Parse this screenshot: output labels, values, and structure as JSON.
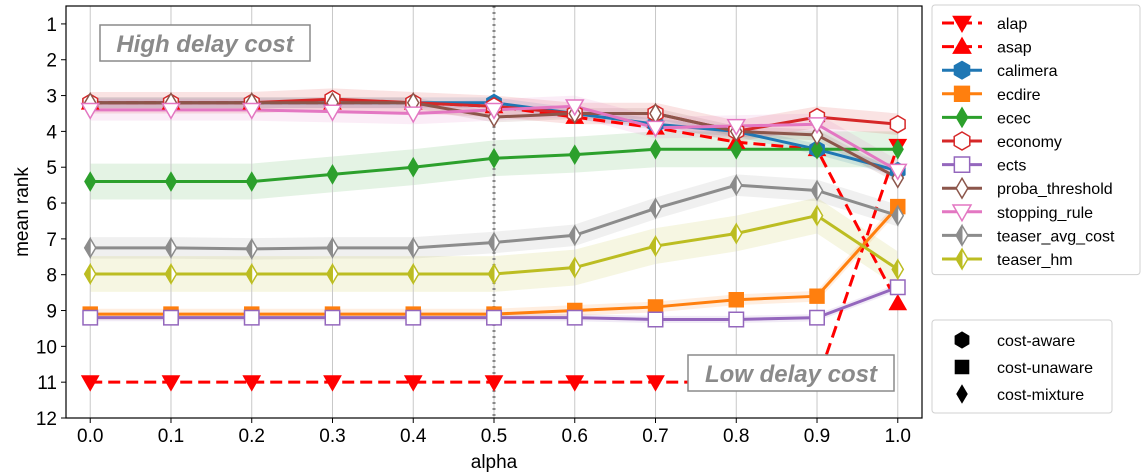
{
  "chart_data": {
    "type": "line",
    "xlabel": "alpha",
    "ylabel": "mean rank",
    "xlim": [
      -0.03,
      1.03
    ],
    "ylim": [
      12,
      0.5
    ],
    "y_inverted": true,
    "xticks": [
      "0.0",
      "0.1",
      "0.2",
      "0.3",
      "0.4",
      "0.5",
      "0.6",
      "0.7",
      "0.8",
      "0.9",
      "1.0"
    ],
    "xtick_values": [
      0.0,
      0.1,
      0.2,
      0.3,
      0.4,
      0.5,
      0.6,
      0.7,
      0.8,
      0.9,
      1.0
    ],
    "yticks": [
      "1",
      "2",
      "3",
      "4",
      "5",
      "6",
      "7",
      "8",
      "9",
      "10",
      "11",
      "12"
    ],
    "ytick_values": [
      1,
      2,
      3,
      4,
      5,
      6,
      7,
      8,
      9,
      10,
      11,
      12
    ],
    "grid": "vertical",
    "reference_line": {
      "x": 0.5,
      "style": "dotted",
      "color": "#888888"
    },
    "legend_position": "right",
    "x": [
      0.0,
      0.1,
      0.2,
      0.3,
      0.4,
      0.5,
      0.6,
      0.7,
      0.8,
      0.9,
      1.0
    ],
    "series": [
      {
        "name": "alap",
        "color": "#ff0000",
        "marker": "triangle-down",
        "dashed": true,
        "filled": true,
        "values": [
          11,
          11,
          11,
          11,
          11,
          11,
          11,
          11,
          11,
          11,
          4.4
        ],
        "band": 0.0
      },
      {
        "name": "asap",
        "color": "#ff0000",
        "marker": "triangle-up",
        "dashed": true,
        "filled": true,
        "values": [
          3.2,
          3.2,
          3.2,
          3.2,
          3.2,
          3.3,
          3.6,
          3.9,
          4.3,
          4.5,
          8.8
        ],
        "band": 0.0
      },
      {
        "name": "calimera",
        "color": "#1f77b4",
        "marker": "hexagon",
        "dashed": false,
        "filled": true,
        "values": [
          3.2,
          3.2,
          3.2,
          3.2,
          3.2,
          3.2,
          3.5,
          3.8,
          4.0,
          4.5,
          5.1
        ],
        "band": 0.15
      },
      {
        "name": "ecdire",
        "color": "#ff7f0e",
        "marker": "square",
        "dashed": false,
        "filled": true,
        "values": [
          9.1,
          9.1,
          9.1,
          9.1,
          9.1,
          9.1,
          9.0,
          8.9,
          8.7,
          8.6,
          6.1
        ],
        "band": 0.15
      },
      {
        "name": "ecec",
        "color": "#2ca02c",
        "marker": "diamond",
        "dashed": false,
        "filled": true,
        "values": [
          5.4,
          5.4,
          5.4,
          5.2,
          5.0,
          4.75,
          4.65,
          4.5,
          4.5,
          4.5,
          4.5
        ],
        "band": 0.5
      },
      {
        "name": "economy",
        "color": "#d62728",
        "marker": "hexagon",
        "dashed": false,
        "filled": false,
        "values": [
          3.2,
          3.2,
          3.2,
          3.1,
          3.2,
          3.3,
          3.5,
          3.5,
          4.0,
          3.6,
          3.8
        ],
        "band": 0.3
      },
      {
        "name": "ects",
        "color": "#9467bd",
        "marker": "square",
        "dashed": false,
        "filled": false,
        "values": [
          9.2,
          9.2,
          9.2,
          9.2,
          9.2,
          9.2,
          9.2,
          9.25,
          9.25,
          9.2,
          8.35
        ],
        "band": 0.1
      },
      {
        "name": "proba_threshold",
        "color": "#8c564b",
        "marker": "diamond",
        "dashed": false,
        "filled": false,
        "values": [
          3.2,
          3.2,
          3.2,
          3.2,
          3.2,
          3.6,
          3.5,
          3.5,
          4.0,
          4.1,
          5.3
        ],
        "band": 0.15
      },
      {
        "name": "stopping_rule",
        "color": "#e377c2",
        "marker": "triangle-down",
        "dashed": false,
        "filled": false,
        "values": [
          3.4,
          3.4,
          3.4,
          3.45,
          3.5,
          3.4,
          3.3,
          3.9,
          3.85,
          3.8,
          5.1
        ],
        "band": 0.3
      },
      {
        "name": "teaser_avg_cost",
        "color": "#8c8c8c",
        "marker": "diamond-half",
        "dashed": false,
        "filled": false,
        "values": [
          7.25,
          7.25,
          7.28,
          7.25,
          7.25,
          7.1,
          6.9,
          6.15,
          5.5,
          5.65,
          6.35
        ],
        "band": 0.3
      },
      {
        "name": "teaser_hm",
        "color": "#bcbd22",
        "marker": "diamond-half",
        "dashed": false,
        "filled": false,
        "values": [
          7.98,
          7.98,
          7.98,
          7.98,
          7.98,
          7.98,
          7.8,
          7.2,
          6.85,
          6.35,
          7.85
        ],
        "band": 0.5
      }
    ],
    "annotations": [
      {
        "text": "High delay cost"
      },
      {
        "text": "Low delay cost"
      }
    ],
    "marker_legend": [
      {
        "label": "cost-aware",
        "shape": "hexagon"
      },
      {
        "label": "cost-unaware",
        "shape": "square"
      },
      {
        "label": "cost-mixture",
        "shape": "diamond"
      }
    ]
  }
}
